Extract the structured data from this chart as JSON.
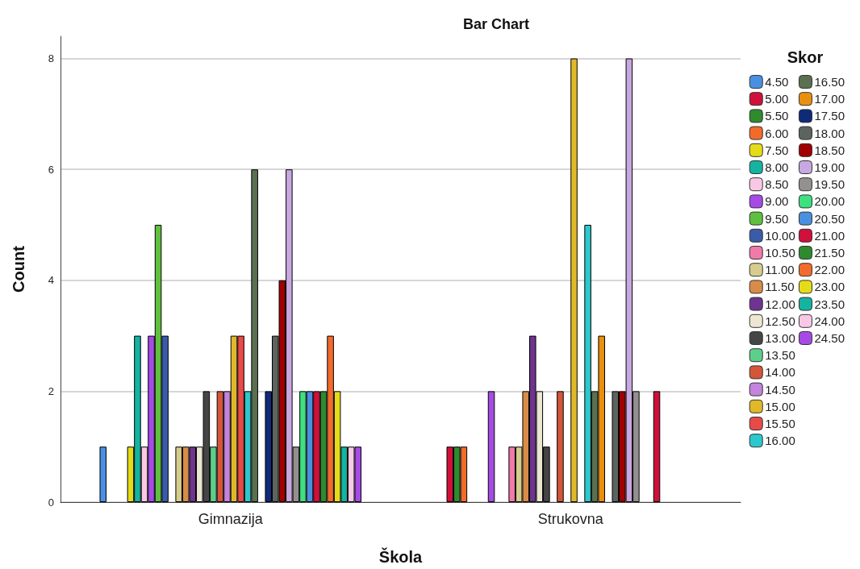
{
  "chart_data": {
    "type": "bar",
    "title": "Bar Chart",
    "xlabel": "Škola",
    "ylabel": "Count",
    "legend_title": "Skor",
    "legend": "right",
    "grid": "y",
    "ylim": [
      0,
      8.4
    ],
    "yticks": [
      0,
      2,
      4,
      6,
      8
    ],
    "categories": [
      "Gimnazija",
      "Strukovna"
    ],
    "series": [
      {
        "name": "4.50",
        "color": "#4a90e2",
        "values": [
          1,
          null
        ]
      },
      {
        "name": "5.00",
        "color": "#d0103a",
        "values": [
          null,
          1
        ]
      },
      {
        "name": "5.50",
        "color": "#2e8b2e",
        "values": [
          null,
          1
        ]
      },
      {
        "name": "6.00",
        "color": "#f26b2b",
        "values": [
          null,
          1
        ]
      },
      {
        "name": "7.50",
        "color": "#e5dc18",
        "values": [
          1,
          null
        ]
      },
      {
        "name": "8.00",
        "color": "#14b4a0",
        "values": [
          3,
          null
        ]
      },
      {
        "name": "8.50",
        "color": "#f9c8e4",
        "values": [
          1,
          null
        ]
      },
      {
        "name": "9.00",
        "color": "#a64ae6",
        "values": [
          3,
          2
        ]
      },
      {
        "name": "9.50",
        "color": "#5fbf3f",
        "values": [
          5,
          null
        ]
      },
      {
        "name": "10.00",
        "color": "#3a5ba8",
        "values": [
          3,
          null
        ]
      },
      {
        "name": "10.50",
        "color": "#f07aa8",
        "values": [
          null,
          1
        ]
      },
      {
        "name": "11.00",
        "color": "#d6cc8e",
        "values": [
          1,
          1
        ]
      },
      {
        "name": "11.50",
        "color": "#d98c48",
        "values": [
          1,
          2
        ]
      },
      {
        "name": "12.00",
        "color": "#6e3490",
        "values": [
          1,
          3
        ]
      },
      {
        "name": "12.50",
        "color": "#ece6d2",
        "values": [
          1,
          2
        ]
      },
      {
        "name": "13.00",
        "color": "#454545",
        "values": [
          2,
          1
        ]
      },
      {
        "name": "13.50",
        "color": "#5ccf8a",
        "values": [
          1,
          null
        ]
      },
      {
        "name": "14.00",
        "color": "#d4553a",
        "values": [
          2,
          2
        ]
      },
      {
        "name": "14.50",
        "color": "#c483dc",
        "values": [
          2,
          null
        ]
      },
      {
        "name": "15.00",
        "color": "#e0b82a",
        "values": [
          3,
          8
        ]
      },
      {
        "name": "15.50",
        "color": "#e84a4a",
        "values": [
          3,
          null
        ]
      },
      {
        "name": "16.00",
        "color": "#2cc8cc",
        "values": [
          2,
          5
        ]
      },
      {
        "name": "16.50",
        "color": "#5a7050",
        "values": [
          6,
          2
        ]
      },
      {
        "name": "17.00",
        "color": "#e8900e",
        "values": [
          null,
          3
        ]
      },
      {
        "name": "17.50",
        "color": "#0f2a78",
        "values": [
          2,
          null
        ]
      },
      {
        "name": "18.00",
        "color": "#5c6460",
        "values": [
          3,
          2
        ]
      },
      {
        "name": "18.50",
        "color": "#a00000",
        "values": [
          4,
          2
        ]
      },
      {
        "name": "19.00",
        "color": "#c8a8e0",
        "values": [
          6,
          8
        ]
      },
      {
        "name": "19.50",
        "color": "#959090",
        "values": [
          1,
          2
        ]
      },
      {
        "name": "20.00",
        "color": "#3ee080",
        "values": [
          2,
          null
        ]
      },
      {
        "name": "20.50",
        "color": "#4a8fe0",
        "values": [
          2,
          null
        ]
      },
      {
        "name": "21.00",
        "color": "#d0103b",
        "values": [
          2,
          2
        ]
      },
      {
        "name": "21.50",
        "color": "#2e8a2e",
        "values": [
          2,
          null
        ]
      },
      {
        "name": "22.00",
        "color": "#f26b2c",
        "values": [
          3,
          null
        ]
      },
      {
        "name": "23.00",
        "color": "#e5dc19",
        "values": [
          2,
          null
        ]
      },
      {
        "name": "23.50",
        "color": "#14b4a1",
        "values": [
          1,
          null
        ]
      },
      {
        "name": "24.00",
        "color": "#f9c8e5",
        "values": [
          1,
          null
        ]
      },
      {
        "name": "24.50",
        "color": "#a64ae7",
        "values": [
          1,
          null
        ]
      }
    ]
  }
}
